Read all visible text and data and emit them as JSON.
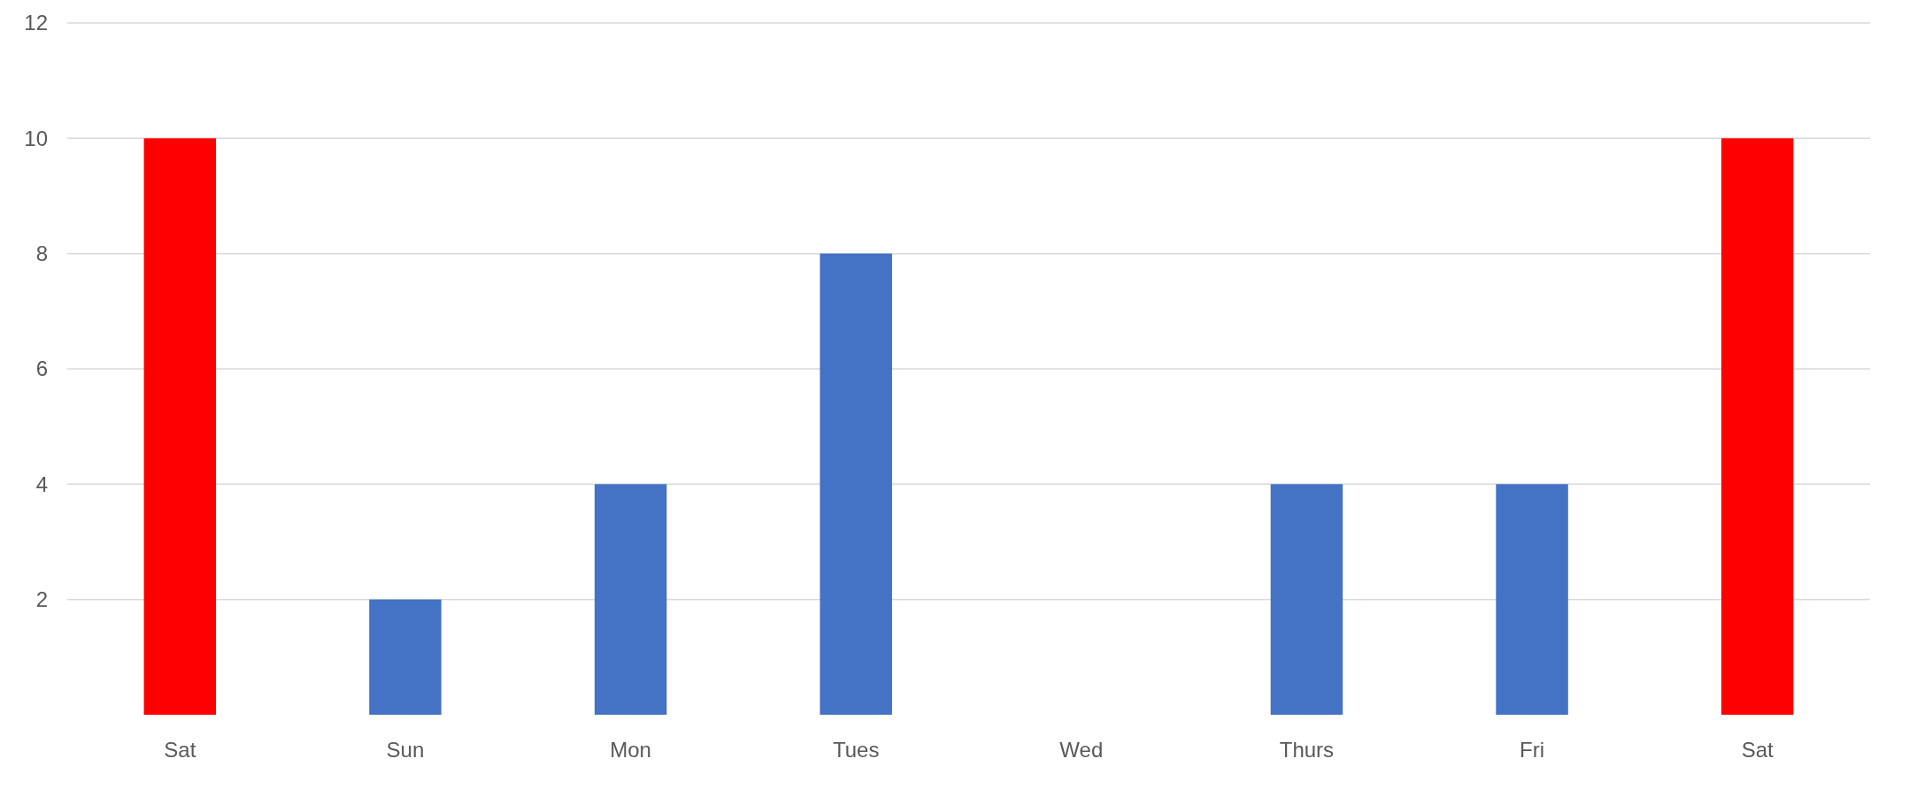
{
  "chart_data": {
    "type": "bar",
    "categories": [
      "Sat",
      "Sun",
      "Mon",
      "Tues",
      "Wed",
      "Thurs",
      "Fri",
      "Sat"
    ],
    "values": [
      10,
      2,
      4,
      8,
      0,
      4,
      4,
      10
    ],
    "colors": [
      "#ff0000",
      "#4472c4",
      "#4472c4",
      "#4472c4",
      "#4472c4",
      "#4472c4",
      "#4472c4",
      "#ff0000"
    ],
    "ylim": [
      0,
      12
    ],
    "yticks": [
      2,
      4,
      6,
      8,
      10,
      12
    ],
    "grid": "y"
  }
}
